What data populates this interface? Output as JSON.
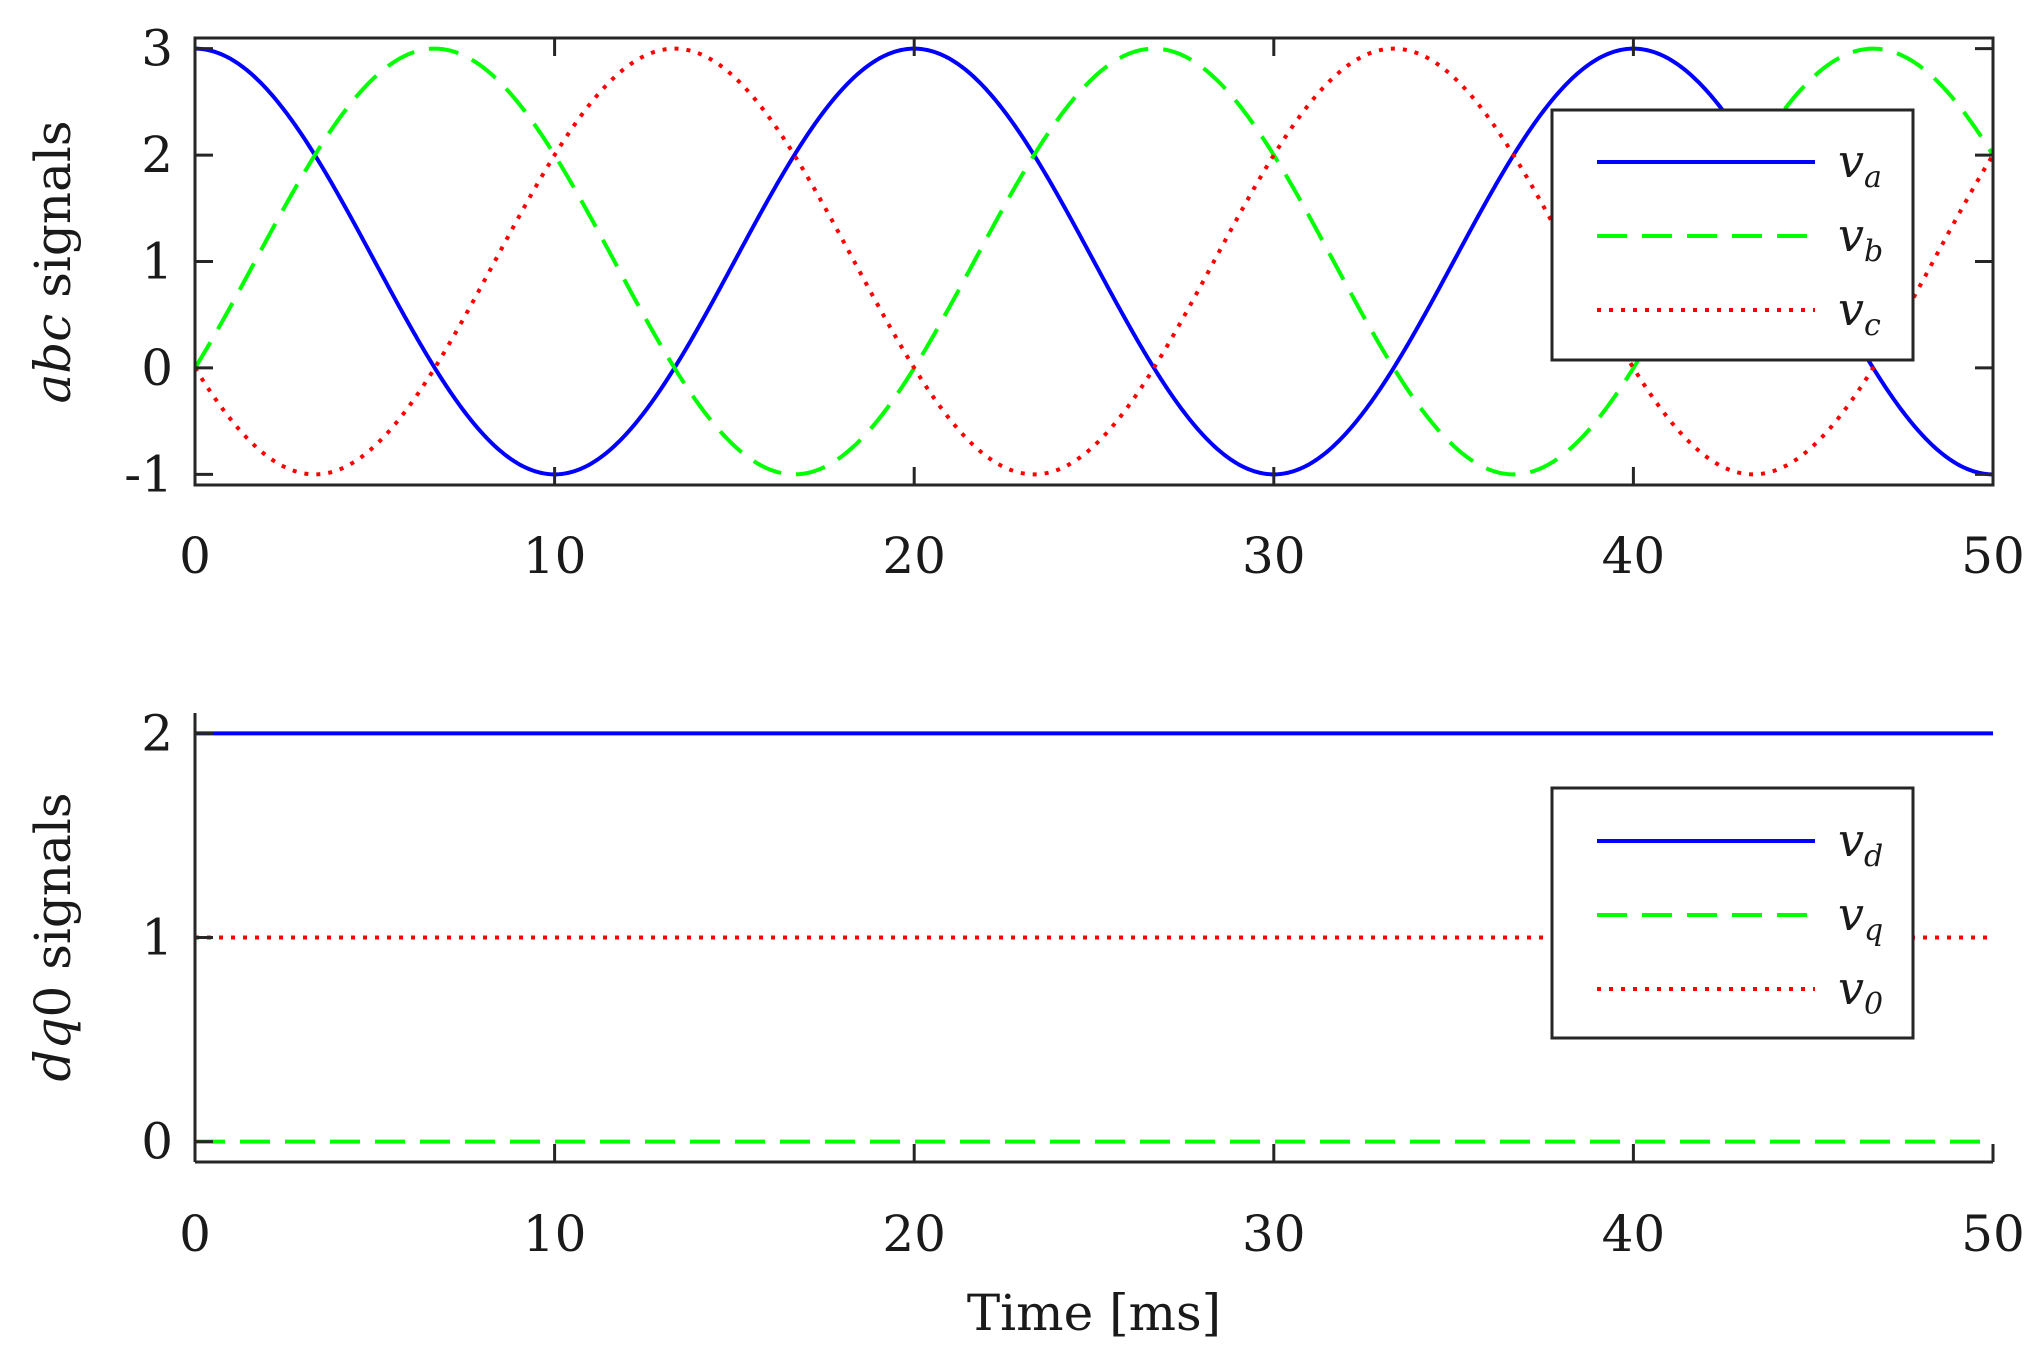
{
  "chart_data": [
    {
      "type": "line",
      "title": "",
      "xlabel": "",
      "ylabel": {
        "italic": "abc",
        "rest": " signals"
      },
      "xlim": [
        0,
        50
      ],
      "ylim": [
        -1.1,
        3.1
      ],
      "xticks": [
        0,
        10,
        20,
        30,
        40,
        50
      ],
      "xtick_labels": [
        "0",
        "10",
        "20",
        "30",
        "40",
        "50"
      ],
      "yticks": [
        -1,
        0,
        1,
        2,
        3
      ],
      "ytick_labels": [
        "-1",
        "0",
        "1",
        "2",
        "3"
      ],
      "legend_position": "top-right",
      "grid": false,
      "series": [
        {
          "name": "v",
          "subscript": "a",
          "color": "#0000ff",
          "style": "solid",
          "formula": "1 + 2*cos(2*pi*50*t)",
          "offset": 1,
          "amplitude": 2,
          "frequency_hz": 50,
          "phase_deg": 0
        },
        {
          "name": "v",
          "subscript": "b",
          "color": "#00ff00",
          "style": "dashed",
          "formula": "1 + 2*cos(2*pi*50*t - 120deg)",
          "offset": 1,
          "amplitude": 2,
          "frequency_hz": 50,
          "phase_deg": -120
        },
        {
          "name": "v",
          "subscript": "c",
          "color": "#ff0000",
          "style": "dotted",
          "formula": "1 + 2*cos(2*pi*50*t + 120deg)",
          "offset": 1,
          "amplitude": 2,
          "frequency_hz": 50,
          "phase_deg": 120
        }
      ]
    },
    {
      "type": "line",
      "title": "",
      "xlabel": "Time [ms]",
      "ylabel": {
        "italic": "dq",
        "rest": "0 signals"
      },
      "xlim": [
        0,
        50
      ],
      "ylim": [
        -0.1,
        2.1
      ],
      "xticks": [
        0,
        10,
        20,
        30,
        40,
        50
      ],
      "xtick_labels": [
        "0",
        "10",
        "20",
        "30",
        "40",
        "50"
      ],
      "yticks": [
        0,
        1,
        2
      ],
      "ytick_labels": [
        "0",
        "1",
        "2"
      ],
      "legend_position": "top-right",
      "grid": false,
      "series": [
        {
          "name": "v",
          "subscript": "d",
          "color": "#0000ff",
          "style": "solid",
          "x": [
            0,
            50
          ],
          "y": [
            2,
            2
          ]
        },
        {
          "name": "v",
          "subscript": "q",
          "color": "#00ff00",
          "style": "dashed",
          "x": [
            0,
            50
          ],
          "y": [
            0,
            0
          ]
        },
        {
          "name": "v",
          "subscript": "0",
          "color": "#ff0000",
          "style": "dotted",
          "x": [
            0,
            50
          ],
          "y": [
            1,
            1
          ]
        }
      ]
    }
  ]
}
